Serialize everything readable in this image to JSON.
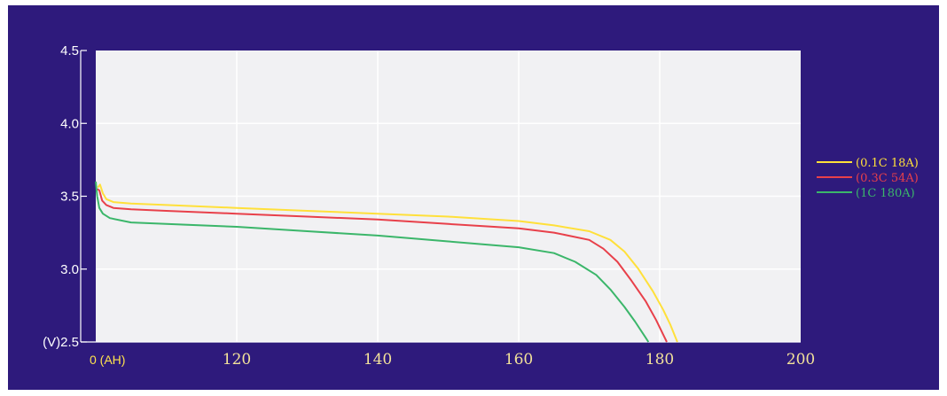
{
  "chart_data": {
    "type": "line",
    "title": "",
    "xlabel": "",
    "ylabel": "",
    "xlim": [
      100,
      200
    ],
    "ylim": [
      2.5,
      4.5
    ],
    "x_tick_labels": [
      "0 (AH)",
      "120",
      "140",
      "160",
      "180",
      "200"
    ],
    "x_tick_values": [
      100,
      120,
      140,
      160,
      180,
      200
    ],
    "y_tick_labels": [
      "(V)2.5",
      "3.0",
      "3.5",
      "4.0",
      "4.5"
    ],
    "y_tick_values": [
      2.5,
      3.0,
      3.5,
      4.0,
      4.5
    ],
    "grid": true,
    "legend": "right",
    "series": [
      {
        "name": "(0.1C 18A)",
        "color": "#ffe03a",
        "points": [
          [
            100.3,
            3.56
          ],
          [
            100.6,
            3.58
          ],
          [
            101,
            3.52
          ],
          [
            101.5,
            3.48
          ],
          [
            102.5,
            3.46
          ],
          [
            105,
            3.45
          ],
          [
            110,
            3.44
          ],
          [
            120,
            3.42
          ],
          [
            130,
            3.4
          ],
          [
            140,
            3.38
          ],
          [
            150,
            3.36
          ],
          [
            160,
            3.33
          ],
          [
            165,
            3.3
          ],
          [
            170,
            3.26
          ],
          [
            173,
            3.2
          ],
          [
            175,
            3.12
          ],
          [
            177,
            3.0
          ],
          [
            179,
            2.85
          ],
          [
            180.5,
            2.72
          ],
          [
            181.5,
            2.62
          ],
          [
            182.5,
            2.5
          ]
        ]
      },
      {
        "name": "(0.3C 54A)",
        "color": "#e8404a",
        "points": [
          [
            100.2,
            3.55
          ],
          [
            100.5,
            3.54
          ],
          [
            100.9,
            3.47
          ],
          [
            101.5,
            3.44
          ],
          [
            102.5,
            3.42
          ],
          [
            105,
            3.41
          ],
          [
            110,
            3.4
          ],
          [
            120,
            3.38
          ],
          [
            130,
            3.36
          ],
          [
            140,
            3.34
          ],
          [
            150,
            3.31
          ],
          [
            160,
            3.28
          ],
          [
            165,
            3.25
          ],
          [
            170,
            3.2
          ],
          [
            172,
            3.14
          ],
          [
            174,
            3.05
          ],
          [
            176,
            2.92
          ],
          [
            178,
            2.78
          ],
          [
            179.5,
            2.65
          ],
          [
            180.5,
            2.55
          ],
          [
            181,
            2.5
          ]
        ]
      },
      {
        "name": "(1C 180A)",
        "color": "#3bb66a",
        "points": [
          [
            100,
            3.6
          ],
          [
            100.2,
            3.5
          ],
          [
            100.5,
            3.42
          ],
          [
            101,
            3.38
          ],
          [
            102,
            3.35
          ],
          [
            105,
            3.32
          ],
          [
            110,
            3.31
          ],
          [
            120,
            3.29
          ],
          [
            130,
            3.26
          ],
          [
            140,
            3.23
          ],
          [
            150,
            3.19
          ],
          [
            160,
            3.15
          ],
          [
            165,
            3.11
          ],
          [
            168,
            3.05
          ],
          [
            171,
            2.96
          ],
          [
            173,
            2.86
          ],
          [
            175,
            2.74
          ],
          [
            176.5,
            2.64
          ],
          [
            178,
            2.53
          ],
          [
            178.4,
            2.5
          ]
        ]
      }
    ]
  }
}
